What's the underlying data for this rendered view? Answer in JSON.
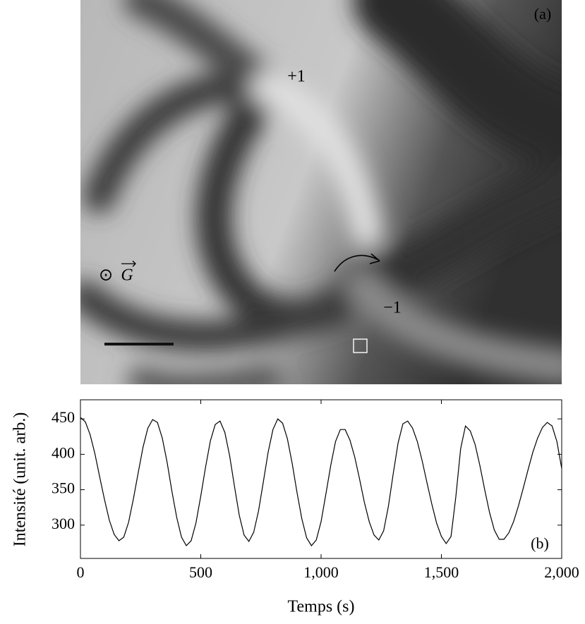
{
  "panel_a": {
    "label": "(a)",
    "defect_plus": "+1",
    "defect_minus": "−1",
    "gravity_symbol": "⊙",
    "gravity_label": "G"
  },
  "chart_data": {
    "type": "line",
    "annotation": "(b)",
    "x_label": "Temps (s)",
    "y_label": "Intensité (unit. arb.)",
    "color": "#000000",
    "x": [
      0,
      20,
      40,
      60,
      80,
      100,
      120,
      140,
      160,
      180,
      200,
      220,
      240,
      260,
      280,
      300,
      320,
      340,
      360,
      380,
      400,
      420,
      440,
      460,
      480,
      500,
      520,
      540,
      560,
      580,
      600,
      620,
      640,
      660,
      680,
      700,
      720,
      740,
      760,
      780,
      800,
      820,
      840,
      860,
      880,
      900,
      920,
      940,
      960,
      980,
      1000,
      1020,
      1040,
      1060,
      1080,
      1100,
      1120,
      1140,
      1160,
      1180,
      1200,
      1220,
      1240,
      1260,
      1280,
      1300,
      1320,
      1340,
      1360,
      1380,
      1400,
      1420,
      1440,
      1460,
      1480,
      1500,
      1520,
      1540,
      1560,
      1580,
      1600,
      1620,
      1640,
      1660,
      1680,
      1700,
      1720,
      1740,
      1760,
      1780,
      1800,
      1820,
      1840,
      1860,
      1880,
      1900,
      1920,
      1940,
      1960,
      1980,
      2000
    ],
    "values": [
      452,
      446,
      428,
      401,
      368,
      336,
      307,
      287,
      278,
      283,
      304,
      337,
      374,
      410,
      437,
      449,
      445,
      423,
      389,
      348,
      311,
      283,
      271,
      278,
      303,
      341,
      382,
      419,
      442,
      447,
      431,
      398,
      355,
      314,
      286,
      277,
      290,
      320,
      361,
      403,
      435,
      450,
      444,
      422,
      387,
      346,
      309,
      282,
      271,
      279,
      305,
      344,
      384,
      418,
      435,
      435,
      420,
      396,
      365,
      332,
      305,
      286,
      279,
      292,
      327,
      373,
      416,
      443,
      447,
      437,
      418,
      391,
      360,
      330,
      303,
      284,
      274,
      284,
      340,
      408,
      440,
      433,
      414,
      384,
      350,
      318,
      293,
      280,
      280,
      289,
      305,
      327,
      352,
      378,
      403,
      423,
      438,
      445,
      440,
      418,
      380
    ],
    "xlim": [
      0,
      2000
    ],
    "xticks": [
      0,
      500,
      {
        "value": 1000,
        "label": "1,000"
      },
      {
        "value": 1500,
        "label": "1,500"
      },
      {
        "value": 2000,
        "label": "2,000"
      }
    ],
    "ylim": [
      253,
      477
    ],
    "yticks": [
      300,
      350,
      400,
      450
    ],
    "grid": false
  }
}
